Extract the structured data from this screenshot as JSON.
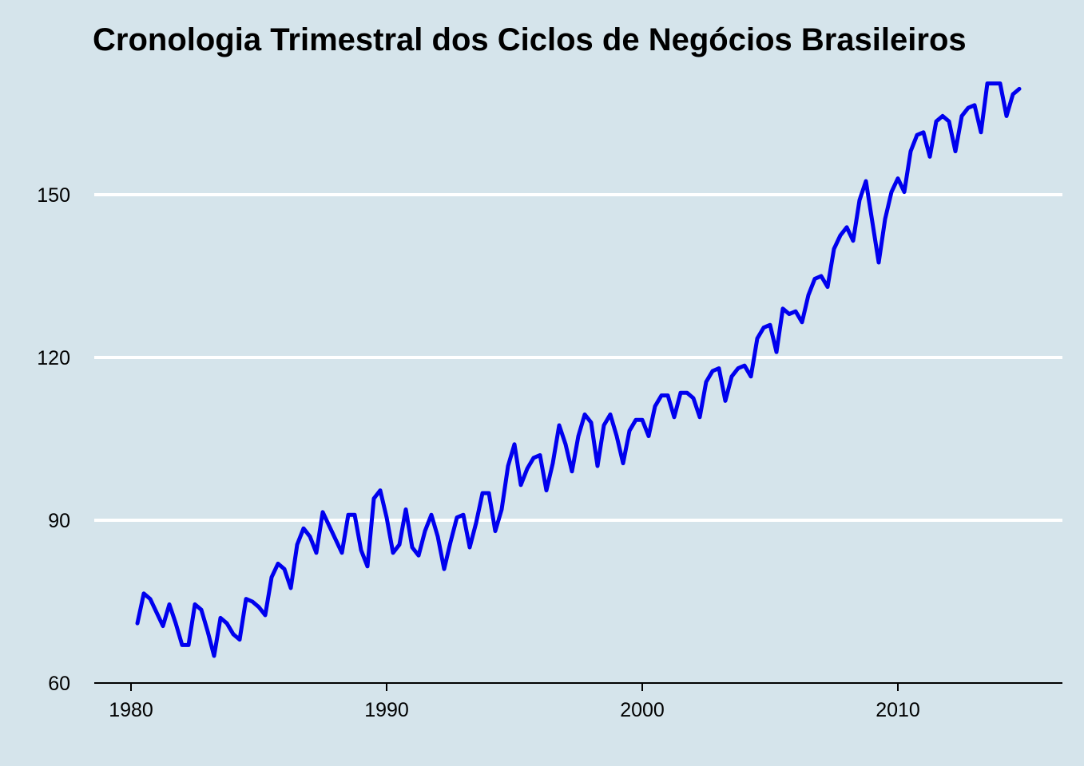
{
  "chart_data": {
    "type": "line",
    "title": "Cronologia Trimestral dos Ciclos de Negócios Brasileiros",
    "xlabel": "",
    "ylabel": "",
    "xlim": [
      1979.5,
      2016.6
    ],
    "ylim": [
      60,
      175
    ],
    "x_ticks": [
      1980,
      1990,
      2000,
      2010
    ],
    "x_tick_labels": [
      "1980",
      "1990",
      "2000",
      "2010"
    ],
    "y_ticks": [
      60,
      90,
      120,
      150
    ],
    "y_tick_labels": [
      "60",
      "90",
      "120",
      "150"
    ],
    "grid": "horizontal",
    "line_color": "#0000ee",
    "background_color": "#d5e4eb",
    "series": [
      {
        "x_start": 1980.25,
        "step": 0.25,
        "values": [
          71.0,
          76.5,
          75.5,
          73.0,
          70.5,
          74.5,
          71.0,
          67.0,
          67.0,
          74.5,
          73.5,
          69.5,
          65.0,
          72.0,
          71.0,
          69.0,
          68.0,
          75.5,
          75.0,
          74.0,
          72.5,
          79.5,
          82.0,
          81.0,
          77.5,
          85.5,
          88.5,
          87.0,
          84.0,
          91.5,
          89.0,
          86.5,
          84.0,
          91.0,
          91.0,
          84.5,
          81.5,
          94.0,
          95.5,
          90.5,
          84.0,
          85.5,
          92.0,
          85.0,
          83.5,
          88.0,
          91.0,
          87.0,
          81.0,
          86.0,
          90.5,
          91.0,
          85.0,
          89.5,
          95.0,
          95.0,
          88.0,
          92.0,
          100.0,
          104.0,
          96.5,
          99.5,
          101.5,
          102.0,
          95.5,
          100.5,
          107.5,
          104.0,
          99.0,
          105.5,
          109.5,
          108.0,
          100.0,
          107.5,
          109.5,
          105.5,
          100.5,
          106.5,
          108.5,
          108.5,
          105.5,
          111.0,
          113.0,
          113.0,
          109.0,
          113.5,
          113.5,
          112.5,
          109.0,
          115.5,
          117.5,
          118.0,
          112.0,
          116.5,
          118.0,
          118.5,
          116.5,
          123.5,
          125.5,
          126.0,
          121.0,
          129.0,
          128.0,
          128.5,
          126.5,
          131.5,
          134.5,
          135.0,
          133.0,
          140.0,
          142.5,
          144.0,
          141.5,
          149.0,
          152.5,
          145.0,
          137.5,
          145.5,
          150.5,
          153.0,
          150.5,
          158.0,
          161.0,
          161.5,
          157.0,
          163.5,
          164.5,
          163.5,
          158.0,
          164.5,
          166.0,
          166.5,
          161.5,
          170.5,
          170.5,
          170.5,
          164.5,
          168.5,
          169.5
        ]
      }
    ]
  }
}
